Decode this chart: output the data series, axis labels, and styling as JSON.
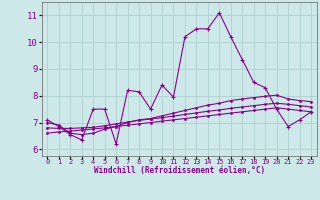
{
  "xlabel": "Windchill (Refroidissement éolien,°C)",
  "x_hours": [
    0,
    1,
    2,
    3,
    4,
    5,
    6,
    7,
    8,
    9,
    10,
    11,
    12,
    13,
    14,
    15,
    16,
    17,
    18,
    19,
    20,
    21,
    22,
    23
  ],
  "main_line": [
    7.1,
    6.85,
    6.55,
    6.35,
    7.5,
    7.5,
    6.2,
    8.2,
    8.15,
    7.5,
    8.4,
    7.95,
    10.2,
    10.5,
    10.5,
    11.1,
    10.2,
    9.35,
    8.5,
    8.3,
    7.5,
    6.85,
    7.1,
    7.4
  ],
  "line2": [
    7.0,
    6.9,
    6.6,
    6.55,
    6.6,
    6.75,
    6.85,
    7.0,
    7.1,
    7.15,
    7.25,
    7.35,
    7.45,
    7.55,
    7.65,
    7.72,
    7.82,
    7.88,
    7.93,
    7.98,
    8.02,
    7.88,
    7.82,
    7.78
  ],
  "line3": [
    6.8,
    6.78,
    6.78,
    6.8,
    6.82,
    6.88,
    6.95,
    7.02,
    7.08,
    7.13,
    7.18,
    7.24,
    7.3,
    7.36,
    7.42,
    7.47,
    7.53,
    7.58,
    7.63,
    7.68,
    7.72,
    7.68,
    7.63,
    7.58
  ],
  "line4": [
    6.6,
    6.65,
    6.68,
    6.72,
    6.76,
    6.8,
    6.85,
    6.9,
    6.95,
    7.0,
    7.05,
    7.1,
    7.15,
    7.2,
    7.25,
    7.3,
    7.35,
    7.4,
    7.45,
    7.5,
    7.55,
    7.5,
    7.45,
    7.4
  ],
  "line_color": "#8b008b",
  "bg_color": "#cce8e8",
  "grid_color": "#aacccc",
  "ylim": [
    5.75,
    11.5
  ],
  "yticks": [
    6,
    7,
    8,
    9,
    10,
    11
  ],
  "xtick_labels": [
    "0",
    "1",
    "2",
    "3",
    "4",
    "5",
    "6",
    "7",
    "8",
    "9",
    "10",
    "11",
    "12",
    "13",
    "14",
    "15",
    "16",
    "17",
    "18",
    "19",
    "20",
    "21",
    "22",
    "23"
  ]
}
